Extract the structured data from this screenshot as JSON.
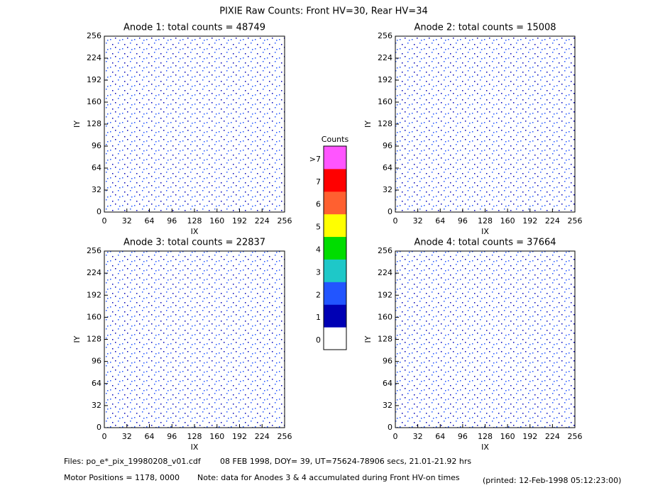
{
  "suptitle": "PIXIE Raw Counts:  Front HV=30, Rear HV=34",
  "chart_data": [
    {
      "type": "heatmap",
      "title": "Anode 1: total counts = 48749",
      "xlabel": "IX",
      "ylabel": "IY",
      "xlim": [
        0,
        256
      ],
      "ylim": [
        0,
        256
      ],
      "xticks": [
        0,
        32,
        64,
        96,
        128,
        160,
        192,
        224,
        256
      ],
      "yticks": [
        0,
        32,
        64,
        96,
        128,
        160,
        192,
        224,
        256
      ]
    },
    {
      "type": "heatmap",
      "title": "Anode 2: total counts = 15008",
      "xlabel": "IX",
      "ylabel": "IY",
      "xlim": [
        0,
        256
      ],
      "ylim": [
        0,
        256
      ],
      "xticks": [
        0,
        32,
        64,
        96,
        128,
        160,
        192,
        224,
        256
      ],
      "yticks": [
        0,
        32,
        64,
        96,
        128,
        160,
        192,
        224,
        256
      ]
    },
    {
      "type": "heatmap",
      "title": "Anode 3: total counts = 22837",
      "xlabel": "IX",
      "ylabel": "IY",
      "xlim": [
        0,
        256
      ],
      "ylim": [
        0,
        256
      ],
      "xticks": [
        0,
        32,
        64,
        96,
        128,
        160,
        192,
        224,
        256
      ],
      "yticks": [
        0,
        32,
        64,
        96,
        128,
        160,
        192,
        224,
        256
      ]
    },
    {
      "type": "heatmap",
      "title": "Anode 4: total counts = 37664",
      "xlabel": "IX",
      "ylabel": "IY",
      "xlim": [
        0,
        256
      ],
      "ylim": [
        0,
        256
      ],
      "xticks": [
        0,
        32,
        64,
        96,
        128,
        160,
        192,
        224,
        256
      ],
      "yticks": [
        0,
        32,
        64,
        96,
        128,
        160,
        192,
        224,
        256
      ]
    }
  ],
  "colorbar": {
    "title": "Counts",
    "ticks": [
      0,
      1,
      2,
      3,
      4,
      5,
      6,
      7,
      {
        "value": 8,
        "label": ">7"
      }
    ],
    "colors": [
      "#ffffff",
      "#0000b4",
      "#2255ff",
      "#1ec8c8",
      "#00dd00",
      "#ffff00",
      "#ff6030",
      "#ff0000",
      "#ff55ff"
    ]
  },
  "footer": {
    "files": "Files: po_e*_pix_19980208_v01.cdf",
    "date": "08 FEB 1998, DOY= 39, UT=75624-78906 secs, 21.01-21.92 hrs",
    "motor": "Motor Positions = 1178, 0000",
    "note": "Note: data for Anodes 3 & 4 accumulated during Front HV-on times",
    "printed": "(printed: 12-Feb-1998 05:12:23:00)"
  }
}
